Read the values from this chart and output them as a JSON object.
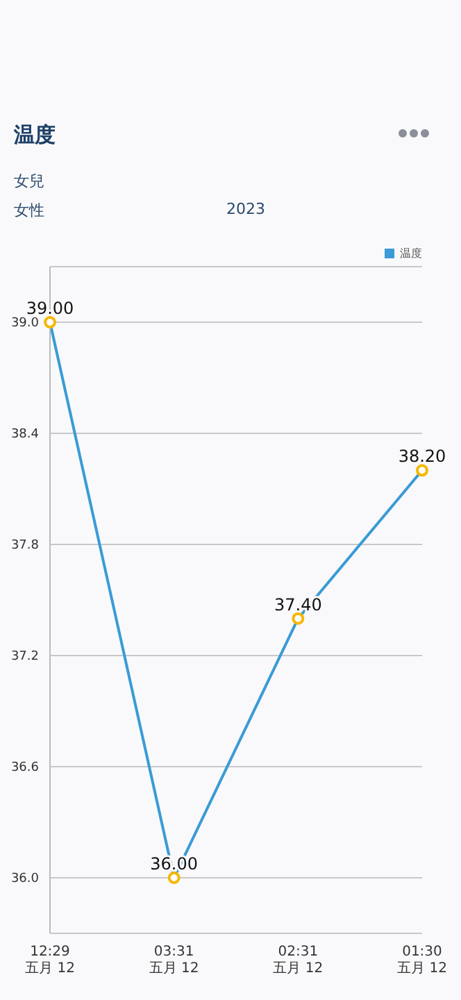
{
  "chart_data": {
    "type": "line",
    "title": "温度",
    "subtitle": "女兒",
    "annotations": [
      "女性",
      "2023"
    ],
    "categories": [
      "12:29\n五月 12",
      "03:31\n五月 12",
      "02:31\n五月 12",
      "01:30\n五月 12"
    ],
    "series": [
      {
        "name": "温度",
        "color": "#3a9bd5",
        "values": [
          39.0,
          36.0,
          37.4,
          38.2
        ],
        "value_labels": [
          "39.00",
          "36.00",
          "37.40",
          "38.20"
        ]
      }
    ],
    "ylim": [
      35.7,
      39.3
    ],
    "yticks": [
      {
        "value": 36,
        "label": "36.0"
      },
      {
        "value": 36.6,
        "label": "36.6"
      },
      {
        "value": 37.2,
        "label": "37.2"
      },
      {
        "value": 37.8,
        "label": "37.8"
      },
      {
        "value": 38.4,
        "label": "38.4"
      },
      {
        "value": 39,
        "label": "39.0"
      }
    ],
    "grid": "y",
    "legend": "top right",
    "marker": "circle",
    "line_style": "solid"
  }
}
